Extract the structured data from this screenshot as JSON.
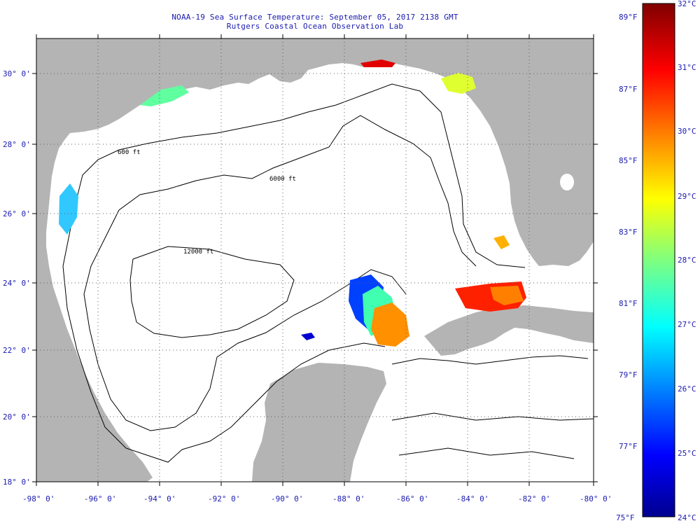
{
  "header": {
    "title": "NOAA-19 Sea Surface Temperature:  September 05, 2017 2138 GMT",
    "subtitle": "Rutgers Coastal Ocean Observation Lab"
  },
  "axes": {
    "lon_labels": [
      "-98° 0'",
      "-96° 0'",
      "-94° 0'",
      "-92° 0'",
      "-90° 0'",
      "-88° 0'",
      "-86° 0'",
      "-84° 0'",
      "-82° 0'",
      "-80° 0'"
    ],
    "lat_labels": [
      "30° 0'",
      "28° 0'",
      "26° 0'",
      "24° 0'",
      "22° 0'",
      "20° 0'",
      "18° 0'"
    ]
  },
  "contours": {
    "shelf_label": "600 ft",
    "deep_label_1": "6000 ft",
    "deep_label_2": "12000 ft"
  },
  "colorbar": {
    "celsius": [
      "32°C",
      "31°C",
      "30°C",
      "29°C",
      "28°C",
      "27°C",
      "26°C",
      "25°C",
      "24°C"
    ],
    "fahrenheit": [
      "89°F",
      "87°F",
      "85°F",
      "83°F",
      "81°F",
      "79°F",
      "77°F",
      "75°F"
    ]
  },
  "colors": {
    "land": "#b4b4b4",
    "ocean": "#ffffff",
    "text": "#1a1ab0",
    "grid": "#808080"
  }
}
